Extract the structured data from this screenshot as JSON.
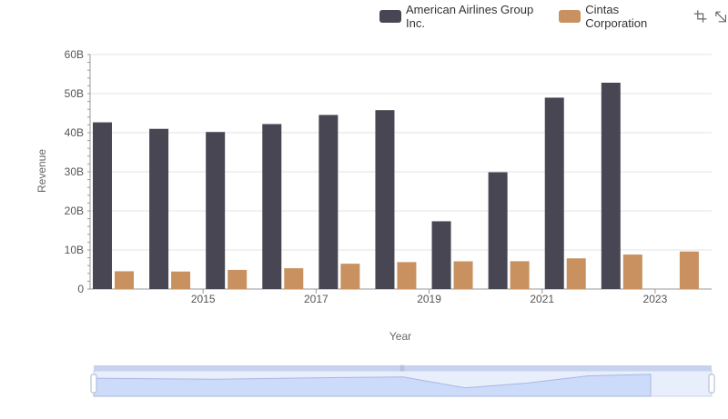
{
  "chart_data": {
    "type": "bar",
    "title": "",
    "xlabel": "Year",
    "ylabel": "Revenue",
    "ylim": [
      0,
      60000000000
    ],
    "y_ticks": [
      "0",
      "10B",
      "20B",
      "30B",
      "40B",
      "50B",
      "60B"
    ],
    "x_tick_labels": [
      "2015",
      "2017",
      "2019",
      "2021",
      "2023"
    ],
    "categories": [
      2014,
      2015,
      2016,
      2017,
      2018,
      2019,
      2020,
      2021,
      2022,
      2023,
      2024
    ],
    "series": [
      {
        "name": "American Airlines Group Inc.",
        "color": "#474652",
        "values": [
          42650000000,
          40990000000,
          40180000000,
          42210000000,
          44540000000,
          45770000000,
          17340000000,
          29880000000,
          48970000000,
          52790000000,
          null
        ]
      },
      {
        "name": "Cintas Corporation",
        "color": "#c8915f",
        "values": [
          4550000000,
          4480000000,
          4900000000,
          5320000000,
          6480000000,
          6890000000,
          7090000000,
          7120000000,
          7850000000,
          8820000000,
          9600000000
        ]
      }
    ],
    "grid": true,
    "legend_position": "top-right"
  }
}
